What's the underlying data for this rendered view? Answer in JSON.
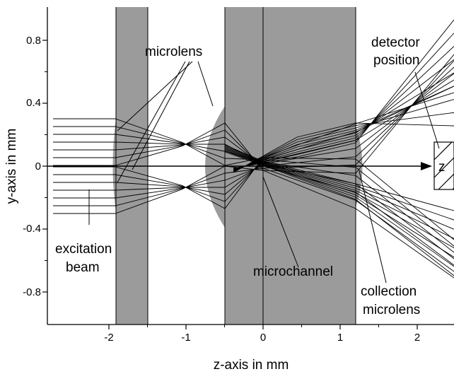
{
  "figure": {
    "x_axis_title": "z-axis in mm",
    "y_axis_title": "y-axis in mm",
    "x_ticks": [
      "-2",
      "-1",
      "0",
      "1",
      "2"
    ],
    "y_ticks": [
      "0.8",
      "0.4",
      "0",
      "-0.4",
      "-0.8"
    ],
    "optical_axis_label": "z",
    "colors": {
      "substrate": "#9b9b9b",
      "ray": "#000000",
      "background": "#ffffff"
    }
  },
  "annotations": {
    "microlens": "microlens",
    "detector_line1": "detector",
    "detector_line2": "position",
    "excitation_line1": "excitation",
    "excitation_line2": "beam",
    "microchannel": "microchannel",
    "collection_line1": "collection",
    "collection_line2": "microlens"
  }
}
